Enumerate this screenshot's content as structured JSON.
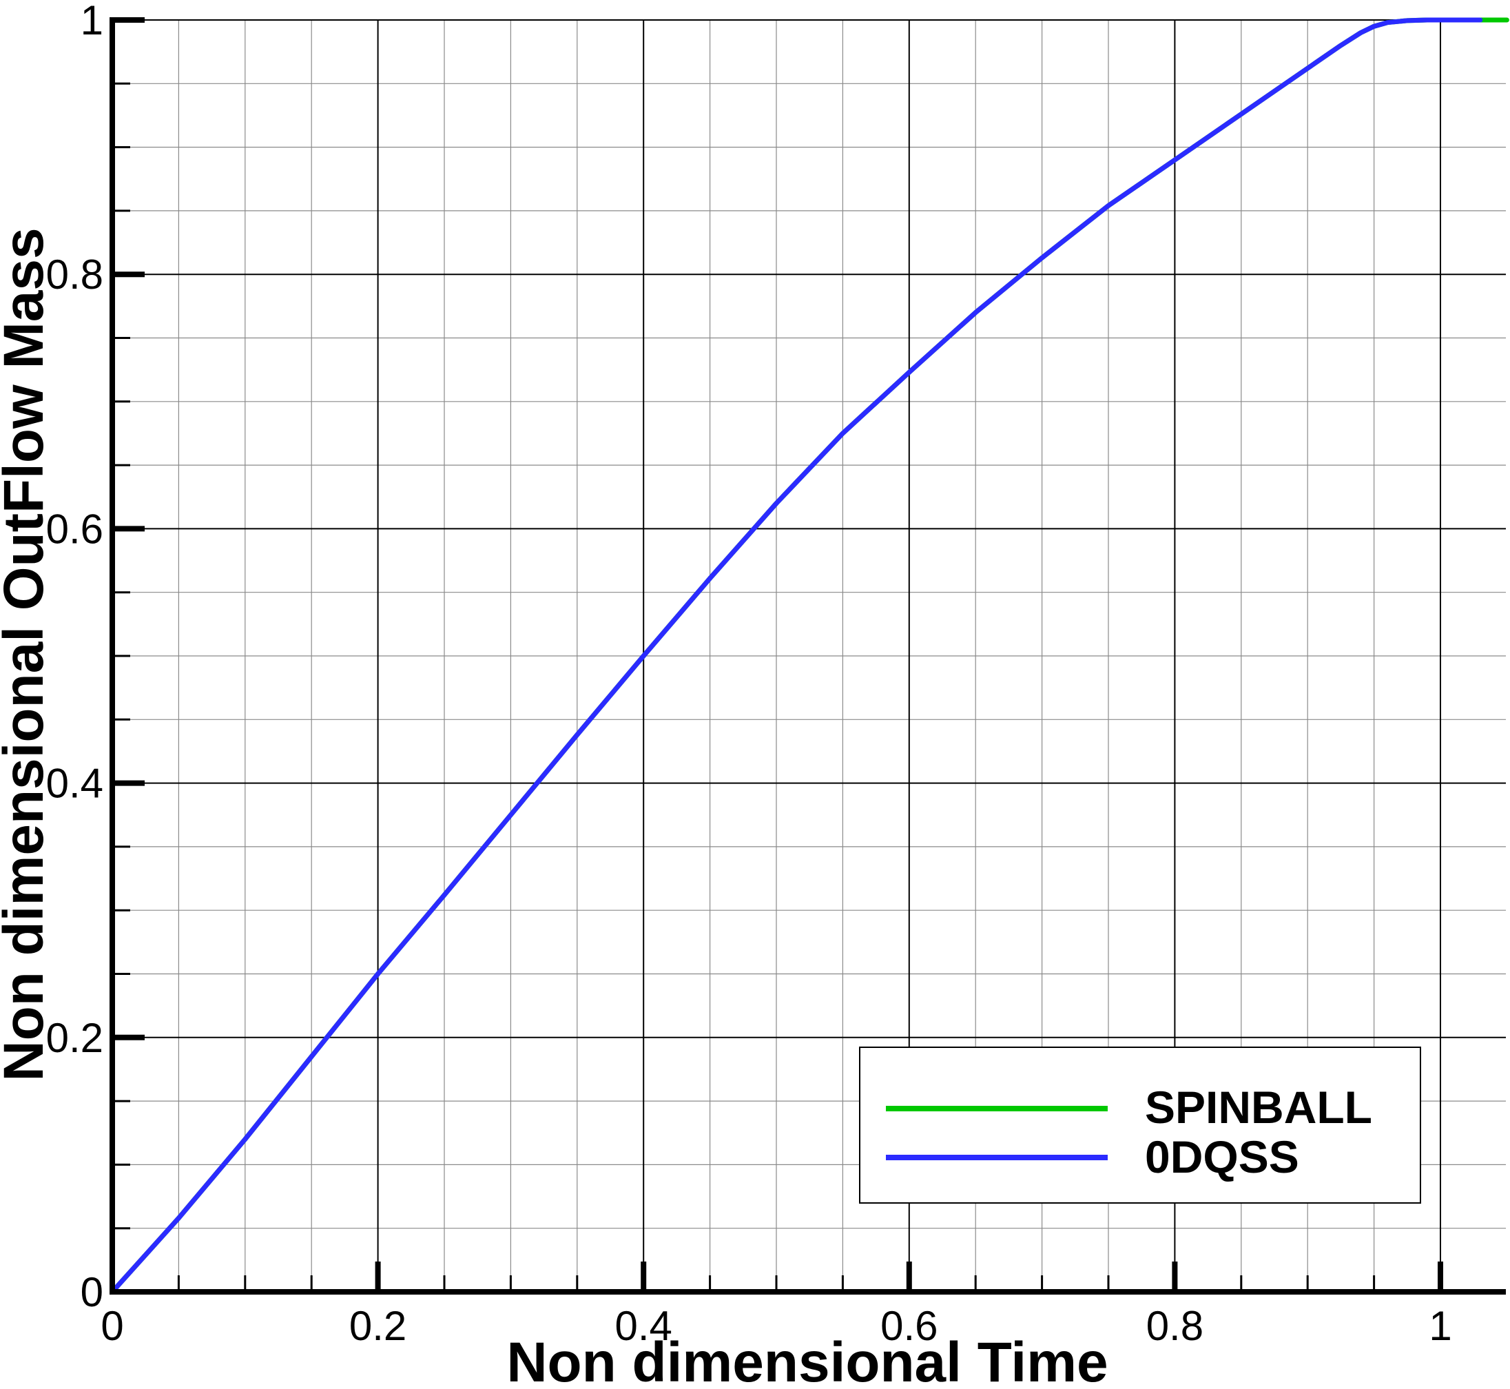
{
  "chart_data": {
    "type": "line",
    "title": "",
    "xlabel": "Non dimensional Time",
    "ylabel": "Non dimensional OutFlow Mass",
    "xlim": [
      0,
      1.05
    ],
    "ylim": [
      0,
      1
    ],
    "grid": true,
    "legend_position": "bottom-right",
    "x_ticks": [
      {
        "value": 0,
        "label": "0"
      },
      {
        "value": 0.2,
        "label": "0.2"
      },
      {
        "value": 0.4,
        "label": "0.4"
      },
      {
        "value": 0.6,
        "label": "0.6"
      },
      {
        "value": 0.8,
        "label": "0.8"
      },
      {
        "value": 1,
        "label": "1"
      }
    ],
    "y_ticks": [
      {
        "value": 0,
        "label": "0"
      },
      {
        "value": 0.2,
        "label": "0.2"
      },
      {
        "value": 0.4,
        "label": "0.4"
      },
      {
        "value": 0.6,
        "label": "0.6"
      },
      {
        "value": 0.8,
        "label": "0.8"
      },
      {
        "value": 1,
        "label": "1"
      }
    ],
    "series": [
      {
        "name": "SPINBALL",
        "color": "#00c800",
        "x": [
          0,
          0.05,
          0.1,
          0.15,
          0.2,
          0.25,
          0.3,
          0.35,
          0.4,
          0.45,
          0.5,
          0.55,
          0.6,
          0.65,
          0.7,
          0.75,
          0.8,
          0.85,
          0.9,
          0.925,
          0.94,
          0.95,
          0.96,
          0.975,
          0.99,
          1.0,
          1.02,
          1.05
        ],
        "y": [
          0,
          0.058,
          0.12,
          0.185,
          0.25,
          0.312,
          0.375,
          0.438,
          0.5,
          0.561,
          0.62,
          0.675,
          0.723,
          0.77,
          0.813,
          0.854,
          0.89,
          0.926,
          0.962,
          0.98,
          0.99,
          0.995,
          0.998,
          0.9995,
          1.0,
          1.0,
          1.0,
          1.0
        ]
      },
      {
        "name": "0DQSS",
        "color": "#2b2bff",
        "x": [
          0,
          0.05,
          0.1,
          0.15,
          0.2,
          0.25,
          0.3,
          0.35,
          0.4,
          0.45,
          0.5,
          0.55,
          0.6,
          0.65,
          0.7,
          0.75,
          0.8,
          0.85,
          0.9,
          0.925,
          0.94,
          0.95,
          0.96,
          0.975,
          0.99,
          1.0,
          1.02,
          1.03
        ],
        "y": [
          0,
          0.058,
          0.12,
          0.185,
          0.25,
          0.312,
          0.375,
          0.438,
          0.5,
          0.561,
          0.62,
          0.675,
          0.723,
          0.77,
          0.813,
          0.854,
          0.89,
          0.926,
          0.962,
          0.98,
          0.99,
          0.995,
          0.998,
          0.9995,
          1.0,
          1.0,
          1.0,
          1.0
        ]
      }
    ]
  }
}
